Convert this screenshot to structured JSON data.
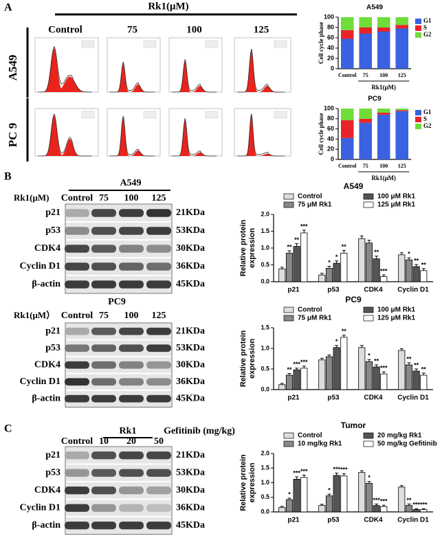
{
  "panel_a": {
    "label": "A",
    "treatment": "Rk1(μM)",
    "columns": [
      "Control",
      "75",
      "100",
      "125"
    ],
    "rows": [
      "A549",
      "PC 9"
    ]
  },
  "panel_b": {
    "label": "B",
    "blots": [
      {
        "cell_line": "A549",
        "treatment": "Rk1(μM)",
        "lanes": [
          "Control",
          "75",
          "100",
          "125"
        ]
      },
      {
        "cell_line": "PC9",
        "treatment": "Rk1(μM）",
        "lanes": [
          "Control",
          "75",
          "100",
          "125"
        ]
      }
    ],
    "proteins": [
      "p21",
      "p53",
      "CDK4",
      "Cyclin D1",
      "β-actin"
    ],
    "sizes": [
      "21KDa",
      "53KDa",
      "30KDa",
      "36KDa",
      "45KDa"
    ]
  },
  "panel_c": {
    "label": "C",
    "treatment": "Rk1",
    "treatment2": "Gefitinib (mg/kg)",
    "lanes": [
      "Control",
      "10",
      "20",
      "50"
    ],
    "proteins": [
      "p21",
      "p53",
      "CDK4",
      "Cyclin D1",
      "β-actin"
    ],
    "sizes": [
      "21KDa",
      "53KDa",
      "30KDa",
      "36KDa",
      "45KDa"
    ]
  },
  "chart_data": [
    {
      "type": "stacked_bar",
      "title": "A549",
      "categories": [
        "Control",
        "75",
        "100",
        "125"
      ],
      "xlabel": "Rk1(μM)",
      "ylabel": "Cell cycle phase",
      "ylim": [
        0,
        100
      ],
      "yticks": [
        0,
        20,
        40,
        60,
        80,
        100
      ],
      "series": [
        {
          "name": "G1",
          "color": "#3a62e0",
          "values": [
            58,
            68,
            72,
            78
          ]
        },
        {
          "name": "S",
          "color": "#e8242a",
          "values": [
            17,
            12,
            8,
            7
          ]
        },
        {
          "name": "G2",
          "color": "#6fdc3a",
          "values": [
            25,
            20,
            20,
            15
          ]
        }
      ]
    },
    {
      "type": "stacked_bar",
      "title": "PC9",
      "categories": [
        "Control",
        "75",
        "100",
        "125"
      ],
      "xlabel": "Rk1(μM)",
      "ylabel": "Cell cycle phase",
      "ylim": [
        0,
        100
      ],
      "yticks": [
        0,
        20,
        40,
        60,
        80,
        100
      ],
      "series": [
        {
          "name": "G1",
          "color": "#3a62e0",
          "values": [
            42,
            72,
            88,
            95
          ]
        },
        {
          "name": "S",
          "color": "#e8242a",
          "values": [
            35,
            8,
            4,
            2
          ]
        },
        {
          "name": "G2",
          "color": "#6fdc3a",
          "values": [
            23,
            20,
            8,
            3
          ]
        }
      ]
    },
    {
      "type": "grouped_bar",
      "title": "A549",
      "categories": [
        "p21",
        "p53",
        "CDK4",
        "Cyclin D1"
      ],
      "ylabel": [
        "Relative protein",
        "expression"
      ],
      "ylim": [
        0,
        2
      ],
      "yticks": [
        {
          "value": 0,
          "label": "0.0"
        },
        0.5,
        {
          "value": 1,
          "label": "1.0"
        },
        1.5,
        {
          "value": 2,
          "label": "2.0"
        }
      ],
      "series": [
        {
          "name": "Control",
          "color": "#dddddd",
          "values": [
            0.38,
            0.2,
            1.28,
            0.8
          ],
          "errors": [
            0.05,
            0.05,
            0.08,
            0.06
          ],
          "stars": [
            null,
            null,
            null,
            null
          ]
        },
        {
          "name": "75  μM Rk1",
          "color": "#888888",
          "values": [
            0.85,
            0.4,
            1.15,
            0.65
          ],
          "errors": [
            0.07,
            0.06,
            0.08,
            0.06
          ],
          "stars": [
            "**",
            "*",
            null,
            "*"
          ]
        },
        {
          "name": "100 μM Rk1",
          "color": "#555555",
          "values": [
            1.05,
            0.55,
            0.68,
            0.45
          ],
          "errors": [
            0.08,
            0.07,
            0.08,
            0.06
          ],
          "stars": [
            "**",
            "*",
            "**",
            "**"
          ]
        },
        {
          "name": "125 μM Rk1",
          "color": "#ffffff",
          "values": [
            1.45,
            0.85,
            0.15,
            0.33
          ],
          "errors": [
            0.08,
            0.08,
            0.05,
            0.06
          ],
          "stars": [
            "***",
            "**",
            "***",
            "**"
          ]
        }
      ]
    },
    {
      "type": "grouped_bar",
      "title": "PC9",
      "categories": [
        "p21",
        "p53",
        "CDK4",
        "Cyclin D1"
      ],
      "ylabel": [
        "Relative protein",
        "expression"
      ],
      "ylim": [
        0,
        1.5
      ],
      "yticks": [
        {
          "value": 0,
          "label": "0.0"
        },
        0.5,
        {
          "value": 1,
          "label": "1.0"
        },
        1.5
      ],
      "series": [
        {
          "name": "Control",
          "color": "#dddddd",
          "values": [
            0.12,
            0.72,
            1.02,
            0.95
          ],
          "errors": [
            0.03,
            0.04,
            0.05,
            0.04
          ],
          "stars": [
            null,
            null,
            null,
            null
          ]
        },
        {
          "name": "75  μM Rk1",
          "color": "#888888",
          "values": [
            0.35,
            0.8,
            0.68,
            0.6
          ],
          "errors": [
            0.04,
            0.04,
            0.05,
            0.05
          ],
          "stars": [
            "**",
            null,
            "*",
            "**"
          ]
        },
        {
          "name": "100 μM Rk1",
          "color": "#555555",
          "values": [
            0.48,
            1.02,
            0.55,
            0.45
          ],
          "errors": [
            0.04,
            0.05,
            0.05,
            0.05
          ],
          "stars": [
            "***",
            "*",
            "**",
            "**"
          ]
        },
        {
          "name": "125 μM Rk1",
          "color": "#ffffff",
          "values": [
            0.52,
            1.27,
            0.38,
            0.35
          ],
          "errors": [
            0.05,
            0.05,
            0.05,
            0.05
          ],
          "stars": [
            "***",
            "**",
            "***",
            "**"
          ]
        }
      ]
    },
    {
      "type": "grouped_bar",
      "title": "Tumor",
      "categories": [
        "p21",
        "p53",
        "CDK4",
        "Cyclin D1"
      ],
      "ylabel": [
        "Relative protein",
        "expression"
      ],
      "ylim": [
        0,
        2
      ],
      "yticks": [
        {
          "value": 0,
          "label": "0.0"
        },
        0.5,
        {
          "value": 1,
          "label": "1.0"
        },
        1.5,
        {
          "value": 2,
          "label": "2.0"
        }
      ],
      "series": [
        {
          "name": "Control",
          "color": "#dddddd",
          "values": [
            0.15,
            0.22,
            1.35,
            0.85
          ],
          "errors": [
            0.04,
            0.04,
            0.06,
            0.05
          ],
          "stars": [
            null,
            null,
            null,
            null
          ]
        },
        {
          "name": "10 mg/kg Rk1",
          "color": "#888888",
          "values": [
            0.42,
            0.55,
            0.98,
            0.22
          ],
          "errors": [
            0.05,
            0.06,
            0.06,
            0.05
          ],
          "stars": [
            "*",
            "*",
            "*",
            "**"
          ]
        },
        {
          "name": "20 mg/kg Rk1",
          "color": "#555555",
          "values": [
            1.12,
            1.25,
            0.22,
            0.08
          ],
          "errors": [
            0.08,
            0.08,
            0.05,
            0.03
          ],
          "stars": [
            "***",
            "***",
            "***",
            "***"
          ]
        },
        {
          "name": "50 mg/kg Gefitinib",
          "color": "#ffffff",
          "values": [
            1.18,
            1.23,
            0.18,
            0.08
          ],
          "errors": [
            0.08,
            0.08,
            0.05,
            0.03
          ],
          "stars": [
            "***",
            "***",
            "***",
            "***"
          ]
        }
      ]
    }
  ]
}
